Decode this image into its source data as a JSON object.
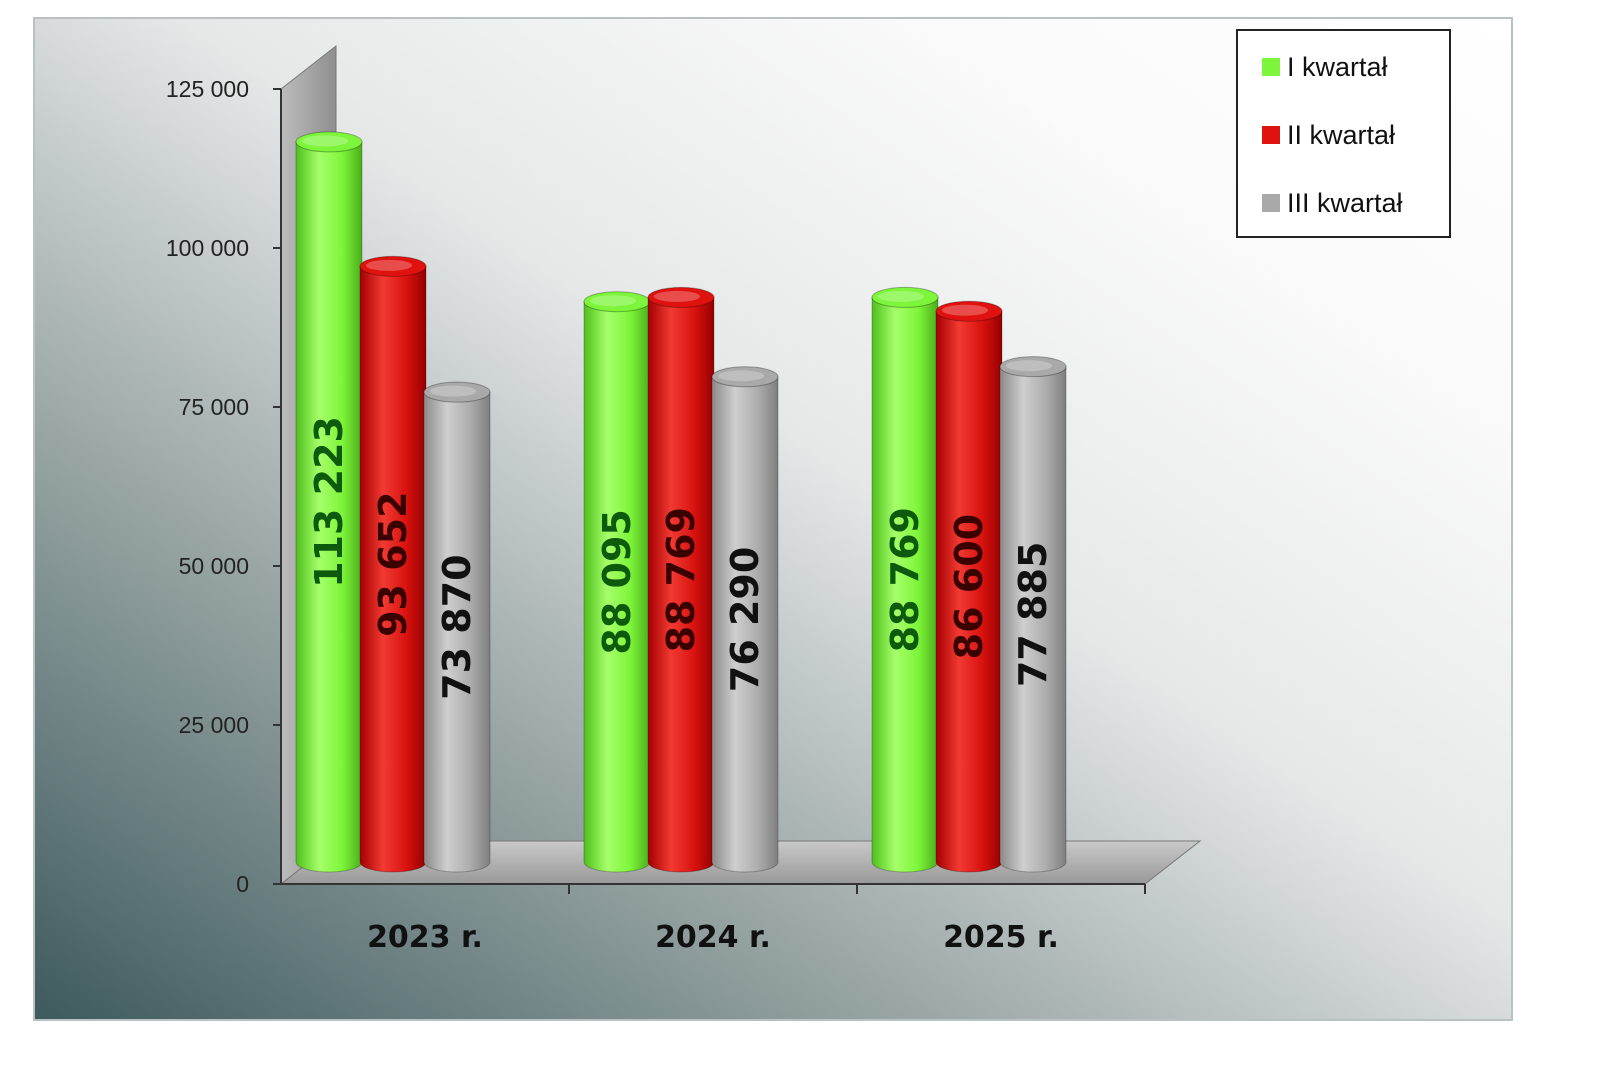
{
  "chart_data": {
    "type": "bar",
    "title": "",
    "xlabel": "",
    "ylabel": "",
    "categories": [
      "2023 r.",
      "2024 r.",
      "2025 r."
    ],
    "series": [
      {
        "name": "I kwartał",
        "values": [
          113223,
          88095,
          88769
        ],
        "labels": [
          "113 223",
          "88 095",
          "88 769"
        ],
        "color": "#7df53a",
        "label_color": "#0d5a0d"
      },
      {
        "name": "II kwartał",
        "values": [
          93652,
          88769,
          86600
        ],
        "labels": [
          "93 652",
          "88 769",
          "86 600"
        ],
        "color": "#e0120f",
        "label_color": "#3a0000"
      },
      {
        "name": "III kwartał",
        "values": [
          73870,
          76290,
          77885
        ],
        "labels": [
          "73 870",
          "76 290",
          "77 885"
        ],
        "color": "#a9a9a9",
        "label_color": "#111111"
      }
    ],
    "ylim": [
      0,
      125000
    ],
    "yticks": [
      0,
      25000,
      50000,
      75000,
      100000,
      125000
    ],
    "ytick_labels": [
      "0",
      "25 000",
      "50 000",
      "75 000",
      "100 000",
      "125 000"
    ],
    "legend_position": "top-right",
    "style": "3d-cylinder",
    "gridlines": false
  }
}
